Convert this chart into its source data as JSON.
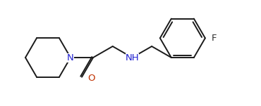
{
  "background_color": "#ffffff",
  "line_color": "#1a1a1a",
  "atom_colors": {
    "N": "#1f1fd0",
    "O": "#c03000",
    "F": "#303030",
    "C": "#1a1a1a"
  },
  "line_width": 1.4,
  "font_size": 8.5
}
